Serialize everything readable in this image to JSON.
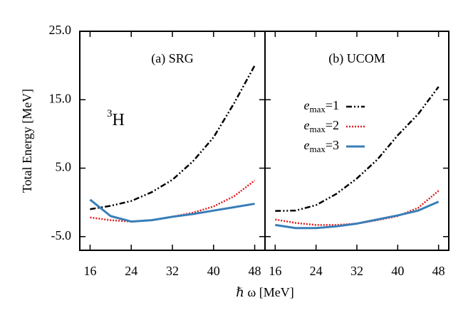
{
  "xlabel": "ℏ ω [MeV]",
  "ylabel": "Total Energy [MeV]",
  "chart_data": [
    {
      "type": "line",
      "title": "(a) SRG",
      "annotation": "3H",
      "x": [
        16,
        20,
        24,
        28,
        32,
        36,
        40,
        44,
        48
      ],
      "xlim": [
        14,
        50
      ],
      "xticks": [
        16,
        24,
        32,
        40,
        48
      ],
      "ylim": [
        -7,
        25
      ],
      "yticks": [
        {
          "value": 25,
          "label": "25.0"
        },
        {
          "value": 15,
          "label": "15.0"
        },
        {
          "value": 5,
          "label": "5.0"
        },
        {
          "value": -5,
          "label": "-5.0"
        }
      ],
      "series": [
        {
          "name": "emax=1",
          "color": "#000000",
          "style": "dashdot",
          "values": [
            -1.0,
            -0.5,
            0.2,
            1.5,
            3.3,
            6.0,
            9.5,
            14.5,
            20.0
          ]
        },
        {
          "name": "emax=2",
          "color": "#e41a1c",
          "style": "dotted",
          "values": [
            -2.2,
            -2.6,
            -2.8,
            -2.6,
            -2.1,
            -1.5,
            -0.6,
            0.9,
            3.2
          ]
        },
        {
          "name": "emax=3",
          "color": "#377eb8",
          "style": "solid",
          "values": [
            0.4,
            -2.0,
            -2.8,
            -2.6,
            -2.1,
            -1.7,
            -1.2,
            -0.7,
            -0.2
          ]
        }
      ]
    },
    {
      "type": "line",
      "title": "(b) UCOM",
      "legend": "center-left",
      "x": [
        16,
        20,
        24,
        28,
        32,
        36,
        40,
        44,
        48
      ],
      "xlim": [
        14,
        50
      ],
      "xticks": [
        16,
        24,
        32,
        40,
        48
      ],
      "ylim": [
        -7,
        25
      ],
      "series": [
        {
          "name": "emax=1",
          "color": "#000000",
          "style": "dashdot",
          "values": [
            -1.25,
            -1.2,
            -0.4,
            1.25,
            3.5,
            6.25,
            9.8,
            12.9,
            16.9
          ]
        },
        {
          "name": "emax=2",
          "color": "#e41a1c",
          "style": "dotted",
          "values": [
            -2.5,
            -3.0,
            -3.3,
            -3.3,
            -3.1,
            -2.6,
            -2.0,
            -0.8,
            1.7
          ]
        },
        {
          "name": "emax=3",
          "color": "#377eb8",
          "style": "solid",
          "values": [
            -3.3,
            -3.75,
            -3.75,
            -3.5,
            -3.1,
            -2.5,
            -1.9,
            -1.2,
            0.1
          ]
        }
      ]
    }
  ]
}
